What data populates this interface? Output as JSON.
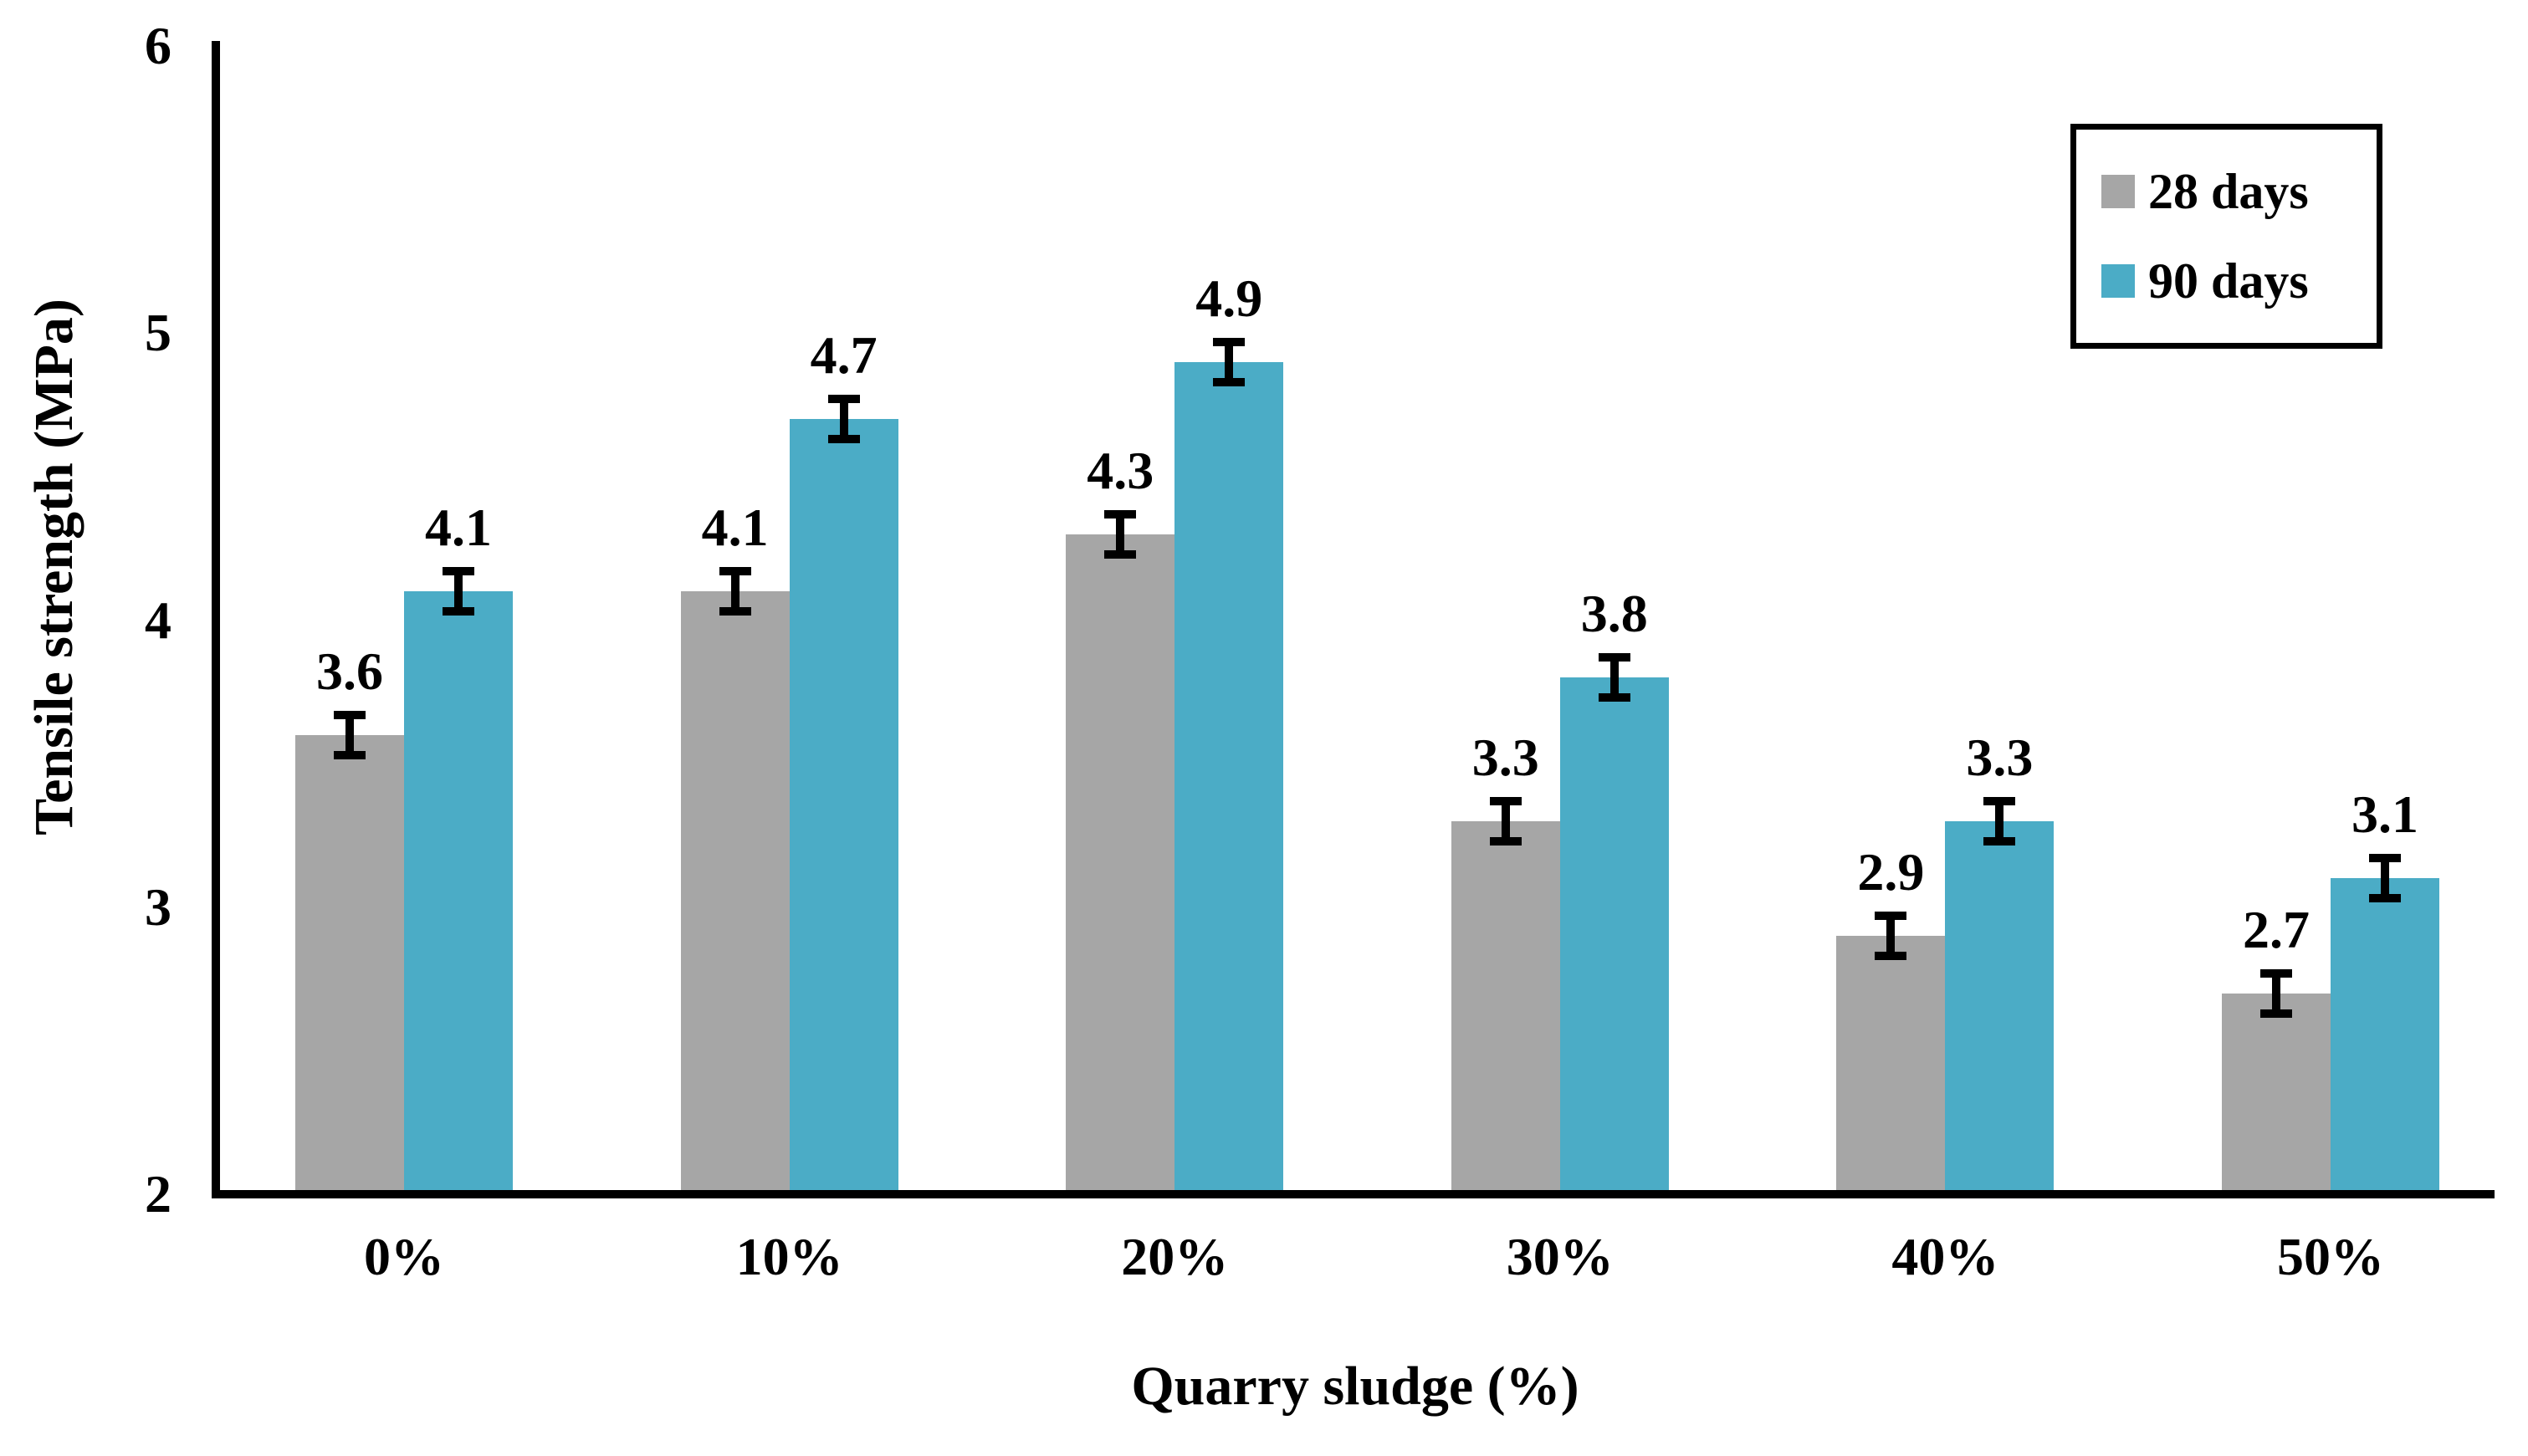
{
  "chart_data": {
    "type": "bar",
    "title": "",
    "categories": [
      "0%",
      "10%",
      "20%",
      "30%",
      "40%",
      "50%"
    ],
    "series": [
      {
        "name": "28 days",
        "color": "#a6a6a6",
        "values": [
          3.6,
          4.1,
          4.3,
          3.3,
          2.9,
          2.7
        ]
      },
      {
        "name": "90 days",
        "color": "#4bacc6",
        "values": [
          4.1,
          4.7,
          4.9,
          3.8,
          3.3,
          3.1
        ]
      }
    ],
    "data_labels": [
      "3.6",
      "4.1",
      "4.3",
      "3.3",
      "2.9",
      "2.7",
      "4.1",
      "4.7",
      "4.9",
      "3.8",
      "3.3",
      "3.1"
    ],
    "error_bar_mpa": 0.07,
    "xlabel": "Quarry sludge (%)",
    "ylabel": "Tensile strength (MPa)",
    "ylim": [
      2,
      6
    ],
    "yticks": [
      "2",
      "3",
      "4",
      "5",
      "6"
    ],
    "grid": false,
    "legend_position": "top-right",
    "bar_edge_color": "none",
    "axis_color": "#000000",
    "text_color": "#000000",
    "background_color": "#ffffff"
  }
}
